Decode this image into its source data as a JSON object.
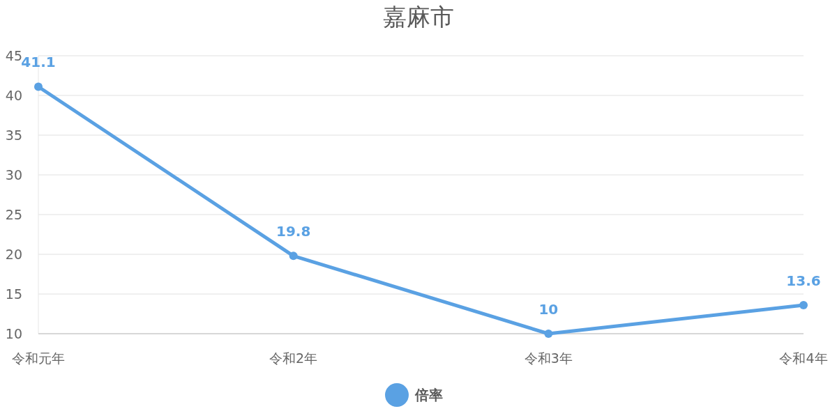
{
  "chart_data": {
    "type": "line",
    "title": "嘉麻市",
    "categories": [
      "令和元年",
      "令和2年",
      "令和3年",
      "令和4年"
    ],
    "series": [
      {
        "name": "倍率",
        "color": "#5aa1e3",
        "values": [
          41.1,
          19.8,
          10,
          13.6
        ]
      }
    ],
    "ylim": [
      10,
      45
    ],
    "yticks": [
      10,
      15,
      20,
      25,
      30,
      35,
      40,
      45
    ],
    "grid": "y",
    "legend": "bottom",
    "marker": "circle",
    "line_style": "solid",
    "data_labels": true
  }
}
